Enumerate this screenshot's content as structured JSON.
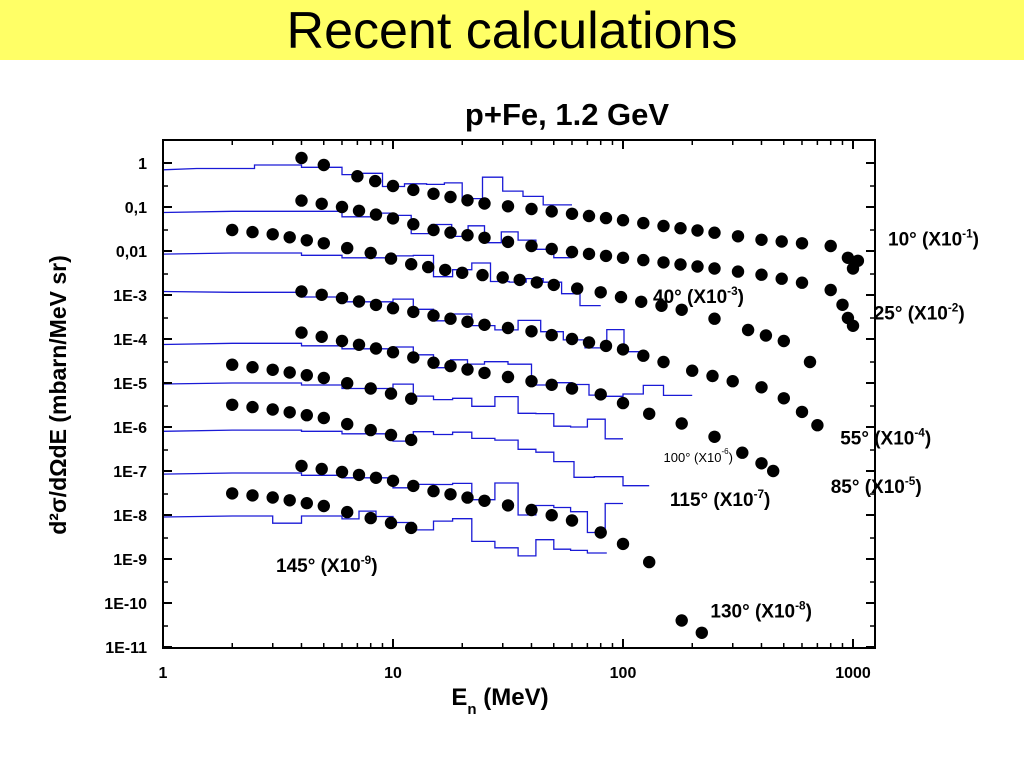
{
  "banner": {
    "title": "Recent calculations",
    "background": "#ffff66"
  },
  "chart_data": {
    "type": "scatter",
    "title": "p+Fe, 1.2 GeV",
    "xlabel": "E",
    "xlabel_sub": "n",
    "xlabel_unit": " (MeV)",
    "ylabel": "d²σ/dΩdE (mbarn/MeV sr)",
    "x_scale": "log",
    "y_scale": "log",
    "xlim": [
      1,
      1300
    ],
    "ylim": [
      1e-11,
      3
    ],
    "x_ticks": [
      {
        "value": 1,
        "label": "1"
      },
      {
        "value": 10,
        "label": "10"
      },
      {
        "value": 100,
        "label": "100"
      },
      {
        "value": 1000,
        "label": "1000"
      }
    ],
    "y_ticks": [
      {
        "value": 1,
        "label": "1"
      },
      {
        "value": 0.1,
        "label": "0,1"
      },
      {
        "value": 0.01,
        "label": "0,01"
      },
      {
        "value": 0.001,
        "label": "1E-3"
      },
      {
        "value": 0.0001,
        "label": "1E-4"
      },
      {
        "value": 1e-05,
        "label": "1E-5"
      },
      {
        "value": 1e-06,
        "label": "1E-6"
      },
      {
        "value": 1e-07,
        "label": "1E-7"
      },
      {
        "value": 1e-08,
        "label": "1E-8"
      },
      {
        "value": 1e-09,
        "label": "1E-9"
      },
      {
        "value": 1e-10,
        "label": "1E-10"
      },
      {
        "value": 1e-11,
        "label": "1E-11"
      }
    ],
    "grid": false,
    "colors": {
      "measured": "#000000",
      "calculated": "#1a1ad6"
    },
    "annotations": [
      {
        "angle": "10°",
        "factor": "(X10",
        "exp": "-1",
        "x": 1420,
        "y": 0.0135
      },
      {
        "angle": "25°",
        "factor": "(X10",
        "exp": "-2",
        "x": 1230,
        "y": 0.00028
      },
      {
        "angle": "40°",
        "factor": "(X10",
        "exp": "-3",
        "x": 135,
        "y": 0.00065
      },
      {
        "angle": "55°",
        "factor": "(X10",
        "exp": "-4",
        "x": 880,
        "y": 4e-07
      },
      {
        "angle": "85°",
        "factor": "(X10",
        "exp": "-5",
        "x": 800,
        "y": 3.2e-08
      },
      {
        "angle": "100°",
        "factor": "(X10",
        "exp": "-6",
        "x": 150,
        "y": 1.6e-07,
        "small": true
      },
      {
        "angle": "115°",
        "factor": "(X10",
        "exp": "-7",
        "x": 160,
        "y": 1.6e-08
      },
      {
        "angle": "130°",
        "factor": "(X10",
        "exp": "-8",
        "x": 240,
        "y": 4.7e-11
      },
      {
        "angle": "145°",
        "factor": "(X10",
        "exp": "-9",
        "x": 3.1,
        "y": 5e-10
      }
    ],
    "measured": [
      {
        "angle": "10°",
        "points": [
          [
            4,
            1.3
          ],
          [
            5,
            0.9
          ],
          [
            7,
            0.5
          ],
          [
            10,
            0.3
          ],
          [
            15,
            0.2
          ],
          [
            25,
            0.12
          ],
          [
            40,
            0.09
          ],
          [
            60,
            0.07
          ],
          [
            100,
            0.05
          ],
          [
            150,
            0.037
          ],
          [
            250,
            0.026
          ],
          [
            400,
            0.018
          ],
          [
            600,
            0.015
          ],
          [
            800,
            0.013
          ],
          [
            950,
            0.007
          ],
          [
            1000,
            0.004
          ],
          [
            1050,
            0.006
          ]
        ]
      },
      {
        "angle": "25°",
        "points": [
          [
            4,
            0.14
          ],
          [
            6,
            0.1
          ],
          [
            10,
            0.055
          ],
          [
            15,
            0.03
          ],
          [
            25,
            0.02
          ],
          [
            40,
            0.013
          ],
          [
            60,
            0.0095
          ],
          [
            100,
            0.007
          ],
          [
            150,
            0.0055
          ],
          [
            250,
            0.004
          ],
          [
            400,
            0.0029
          ],
          [
            600,
            0.0019
          ],
          [
            800,
            0.0013
          ],
          [
            900,
            0.0006
          ],
          [
            950,
            0.0003
          ],
          [
            1000,
            0.0002
          ]
        ]
      },
      {
        "angle": "40°",
        "points": [
          [
            2,
            0.03
          ],
          [
            3,
            0.024
          ],
          [
            5,
            0.015
          ],
          [
            8,
            0.009
          ],
          [
            12,
            0.005
          ],
          [
            20,
            0.0032
          ],
          [
            30,
            0.0025
          ],
          [
            50,
            0.0017
          ],
          [
            80,
            0.00115
          ],
          [
            120,
            0.0007
          ],
          [
            180,
            0.00046
          ],
          [
            250,
            0.00029
          ],
          [
            350,
            0.00016
          ],
          [
            500,
            9e-05
          ],
          [
            650,
            3e-05
          ]
        ]
      },
      {
        "angle": "55°",
        "points": [
          [
            4,
            0.0012
          ],
          [
            6,
            0.00085
          ],
          [
            10,
            0.0005
          ],
          [
            15,
            0.00034
          ],
          [
            25,
            0.00021
          ],
          [
            40,
            0.00015
          ],
          [
            60,
            0.0001
          ],
          [
            100,
            5.8e-05
          ],
          [
            150,
            3e-05
          ],
          [
            200,
            1.9e-05
          ],
          [
            300,
            1.1e-05
          ],
          [
            400,
            8e-06
          ],
          [
            500,
            4.5e-06
          ],
          [
            600,
            2.2e-06
          ],
          [
            700,
            1.1e-06
          ]
        ]
      },
      {
        "angle": "85°",
        "points": [
          [
            4,
            0.00014
          ],
          [
            6,
            9e-05
          ],
          [
            10,
            5e-05
          ],
          [
            15,
            2.9e-05
          ],
          [
            25,
            1.7e-05
          ],
          [
            40,
            1.1e-05
          ],
          [
            60,
            7.5e-06
          ],
          [
            80,
            5.5e-06
          ],
          [
            100,
            3.5e-06
          ],
          [
            130,
            2e-06
          ],
          [
            180,
            1.2e-06
          ],
          [
            250,
            6e-07
          ],
          [
            330,
            2.6e-07
          ],
          [
            400,
            1.5e-07
          ],
          [
            450,
            1e-07
          ]
        ]
      },
      {
        "angle": "100°",
        "points": [
          [
            2,
            2.6e-05
          ],
          [
            3,
            2e-05
          ],
          [
            5,
            1.3e-05
          ],
          [
            8,
            7.5e-06
          ],
          [
            12,
            4.4e-06
          ]
        ]
      },
      {
        "angle": "115°",
        "points": [
          [
            2,
            3.2e-06
          ],
          [
            3,
            2.5e-06
          ],
          [
            5,
            1.6e-06
          ],
          [
            8,
            8.5e-07
          ],
          [
            12,
            5.1e-07
          ]
        ]
      },
      {
        "angle": "130°",
        "points": [
          [
            4,
            1.3e-07
          ],
          [
            6,
            9.5e-08
          ],
          [
            10,
            6e-08
          ],
          [
            15,
            3.5e-08
          ],
          [
            25,
            2.1e-08
          ],
          [
            40,
            1.3e-08
          ],
          [
            60,
            7.5e-09
          ],
          [
            80,
            4e-09
          ],
          [
            100,
            2.2e-09
          ],
          [
            130,
            8.5e-10
          ],
          [
            180,
            4e-11
          ],
          [
            220,
            2.1e-11
          ]
        ]
      },
      {
        "angle": "145°",
        "points": [
          [
            2,
            3.1e-08
          ],
          [
            3,
            2.5e-08
          ],
          [
            5,
            1.6e-08
          ],
          [
            8,
            8.5e-09
          ],
          [
            12,
            5.1e-09
          ]
        ]
      }
    ],
    "calculated": [
      {
        "angle": "10°",
        "range": [
          1,
          60
        ],
        "lead": [
          1,
          0.7
        ],
        "steps": [
          [
            1.4,
            0.75
          ],
          [
            2.5,
            0.9
          ],
          [
            4,
            0.8
          ],
          [
            6,
            0.55
          ],
          [
            9,
            0.45
          ],
          [
            14,
            0.35
          ],
          [
            20,
            0.28
          ],
          [
            30,
            0.2
          ],
          [
            45,
            0.16
          ]
        ]
      },
      {
        "angle": "25°",
        "range": [
          1,
          60
        ],
        "lead": [
          1,
          0.075
        ],
        "steps": [
          [
            2,
            0.08
          ],
          [
            4,
            0.08
          ],
          [
            6,
            0.06
          ],
          [
            8,
            0.055
          ],
          [
            12,
            0.04
          ],
          [
            18,
            0.03
          ],
          [
            25,
            0.025
          ],
          [
            35,
            0.018
          ],
          [
            50,
            0.015
          ]
        ]
      },
      {
        "angle": "40°",
        "range": [
          1,
          80
        ],
        "lead": [
          1,
          0.0085
        ],
        "steps": [
          [
            2,
            0.009
          ],
          [
            4,
            0.008
          ],
          [
            6,
            0.007
          ],
          [
            10,
            0.005
          ],
          [
            15,
            0.004
          ],
          [
            22,
            0.003
          ],
          [
            32,
            0.0022
          ],
          [
            45,
            0.0015
          ],
          [
            65,
            0.001
          ]
        ]
      },
      {
        "angle": "55°",
        "range": [
          1,
          120
        ],
        "lead": [
          1,
          0.0012
        ],
        "steps": [
          [
            2,
            0.00115
          ],
          [
            4,
            0.0009
          ],
          [
            6,
            0.0007
          ],
          [
            10,
            0.0005
          ],
          [
            15,
            0.00035
          ],
          [
            22,
            0.00025
          ],
          [
            35,
            0.00018
          ],
          [
            55,
            0.00012
          ],
          [
            85,
            8e-05
          ]
        ]
      },
      {
        "angle": "85°",
        "range": [
          1,
          200
        ],
        "lead": [
          1,
          7.5e-05
        ],
        "steps": [
          [
            2,
            8e-05
          ],
          [
            4,
            7e-05
          ],
          [
            6,
            6e-05
          ],
          [
            10,
            4.5e-05
          ],
          [
            15,
            3e-05
          ],
          [
            25,
            2.2e-05
          ],
          [
            40,
            1.5e-05
          ],
          [
            60,
            1e-05
          ],
          [
            100,
            6.5e-06
          ],
          [
            150,
            4e-06
          ]
        ]
      },
      {
        "angle": "100°",
        "range": [
          1,
          100
        ],
        "lead": [
          1,
          9.5e-06
        ],
        "steps": [
          [
            2,
            1e-05
          ],
          [
            4,
            9e-06
          ],
          [
            6,
            7.5e-06
          ],
          [
            10,
            6e-06
          ],
          [
            15,
            4.5e-06
          ],
          [
            22,
            3.2e-06
          ],
          [
            35,
            2.2e-06
          ],
          [
            50,
            1.5e-06
          ],
          [
            70,
            1e-06
          ]
        ]
      },
      {
        "angle": "115°",
        "range": [
          1,
          130
        ],
        "lead": [
          1,
          8e-07
        ],
        "steps": [
          [
            2,
            8.5e-07
          ],
          [
            4,
            8e-07
          ],
          [
            6,
            7e-07
          ],
          [
            10,
            6e-07
          ],
          [
            15,
            4.5e-07
          ],
          [
            22,
            3.2e-07
          ],
          [
            35,
            2.2e-07
          ],
          [
            50,
            1.5e-07
          ],
          [
            75,
            1e-07
          ],
          [
            100,
            6e-08
          ]
        ]
      },
      {
        "angle": "130°",
        "range": [
          1,
          100
        ],
        "lead": [
          1,
          8.5e-08
        ],
        "steps": [
          [
            2,
            9e-08
          ],
          [
            4,
            8e-08
          ],
          [
            6,
            7e-08
          ],
          [
            10,
            5.5e-08
          ],
          [
            15,
            4e-08
          ],
          [
            22,
            3e-08
          ],
          [
            35,
            2e-08
          ],
          [
            50,
            1.3e-08
          ],
          [
            70,
            8e-09
          ]
        ]
      },
      {
        "angle": "145°",
        "range": [
          1,
          85
        ],
        "lead": [
          1,
          9e-09
        ],
        "steps": [
          [
            2,
            9.5e-09
          ],
          [
            3,
            6.5e-09
          ],
          [
            4,
            9.5e-09
          ],
          [
            6,
            8.5e-09
          ],
          [
            10,
            7e-09
          ],
          [
            15,
            5e-09
          ],
          [
            22,
            3.5e-09
          ],
          [
            35,
            2e-09
          ],
          [
            50,
            1.2e-09
          ],
          [
            70,
            7e-10
          ]
        ]
      }
    ]
  }
}
